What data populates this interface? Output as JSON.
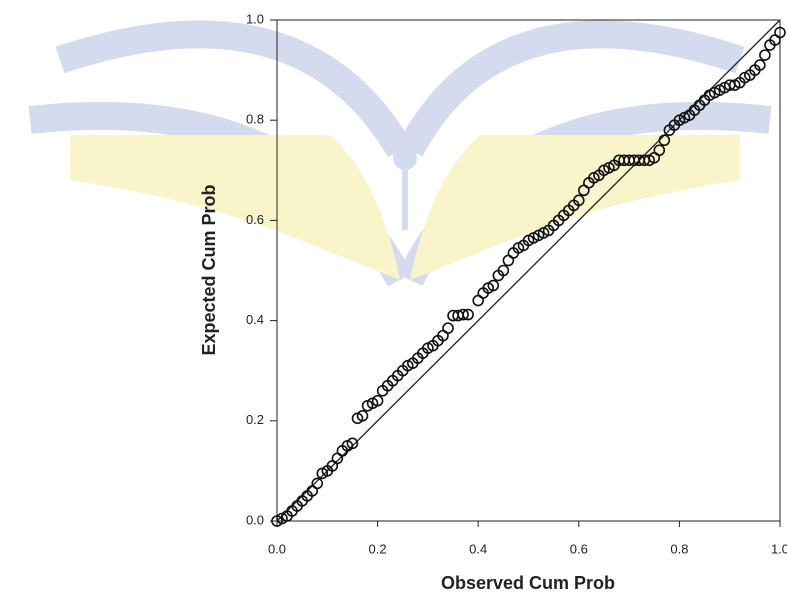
{
  "chart_data": {
    "type": "scatter",
    "x_label": "Observed Cum Prob",
    "y_label": "Expected Cum Prob",
    "xlim": [
      0,
      1
    ],
    "ylim": [
      0,
      1
    ],
    "xticks": [
      {
        "value": 0,
        "label": "0.0"
      },
      0.2,
      0.4,
      0.6,
      0.8,
      {
        "value": 1,
        "label": "1.0"
      }
    ],
    "yticks": [
      {
        "value": 0,
        "label": "0.0"
      },
      0.2,
      0.4,
      0.6,
      0.8,
      {
        "value": 1,
        "label": "1.0"
      }
    ],
    "color": "#111111",
    "reference_line": {
      "x": [
        0,
        1
      ],
      "y": [
        0,
        1
      ]
    },
    "x": [
      0.0,
      0.01,
      0.02,
      0.03,
      0.04,
      0.05,
      0.06,
      0.07,
      0.08,
      0.09,
      0.1,
      0.11,
      0.12,
      0.13,
      0.14,
      0.15,
      0.16,
      0.17,
      0.18,
      0.19,
      0.2,
      0.21,
      0.22,
      0.23,
      0.24,
      0.25,
      0.26,
      0.27,
      0.28,
      0.29,
      0.3,
      0.31,
      0.32,
      0.33,
      0.34,
      0.35,
      0.36,
      0.37,
      0.38,
      0.4,
      0.41,
      0.42,
      0.43,
      0.44,
      0.45,
      0.46,
      0.47,
      0.48,
      0.49,
      0.5,
      0.51,
      0.52,
      0.53,
      0.54,
      0.55,
      0.56,
      0.57,
      0.58,
      0.59,
      0.6,
      0.61,
      0.62,
      0.63,
      0.64,
      0.65,
      0.66,
      0.67,
      0.68,
      0.69,
      0.7,
      0.71,
      0.72,
      0.73,
      0.74,
      0.75,
      0.76,
      0.77,
      0.78,
      0.79,
      0.8,
      0.81,
      0.82,
      0.83,
      0.84,
      0.85,
      0.86,
      0.87,
      0.88,
      0.89,
      0.9,
      0.91,
      0.92,
      0.93,
      0.94,
      0.95,
      0.96,
      0.97,
      0.98,
      0.99,
      1.0
    ],
    "values": [
      0.0,
      0.005,
      0.01,
      0.02,
      0.03,
      0.04,
      0.05,
      0.06,
      0.075,
      0.095,
      0.1,
      0.11,
      0.125,
      0.14,
      0.15,
      0.155,
      0.205,
      0.21,
      0.23,
      0.235,
      0.24,
      0.26,
      0.27,
      0.28,
      0.29,
      0.3,
      0.31,
      0.315,
      0.325,
      0.335,
      0.345,
      0.35,
      0.36,
      0.37,
      0.385,
      0.41,
      0.41,
      0.412,
      0.412,
      0.44,
      0.455,
      0.465,
      0.47,
      0.49,
      0.5,
      0.52,
      0.535,
      0.545,
      0.55,
      0.56,
      0.565,
      0.57,
      0.575,
      0.58,
      0.59,
      0.6,
      0.61,
      0.62,
      0.63,
      0.64,
      0.66,
      0.675,
      0.685,
      0.69,
      0.7,
      0.705,
      0.71,
      0.72,
      0.72,
      0.72,
      0.72,
      0.72,
      0.72,
      0.72,
      0.725,
      0.74,
      0.76,
      0.78,
      0.79,
      0.8,
      0.805,
      0.81,
      0.82,
      0.83,
      0.84,
      0.85,
      0.855,
      0.86,
      0.865,
      0.87,
      0.87,
      0.875,
      0.885,
      0.89,
      0.9,
      0.91,
      0.93,
      0.95,
      0.96,
      0.975
    ]
  }
}
